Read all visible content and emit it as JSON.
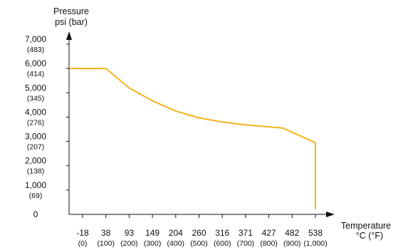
{
  "chart_data": {
    "type": "line",
    "ylabel": [
      "Pressure",
      "psi (bar)"
    ],
    "xlabel": [
      "Temperature",
      "°C (°F)"
    ],
    "ylim": [
      0,
      7000
    ],
    "y_ticks": [
      {
        "value": 7000,
        "main": "7,000",
        "sub": "(483)"
      },
      {
        "value": 6000,
        "main": "6,000",
        "sub": "(414)"
      },
      {
        "value": 5000,
        "main": "5,000",
        "sub": "(345)"
      },
      {
        "value": 4000,
        "main": "4,000",
        "sub": "(276)"
      },
      {
        "value": 3000,
        "main": "3,000",
        "sub": "(207)"
      },
      {
        "value": 2000,
        "main": "2,000",
        "sub": "(138)"
      },
      {
        "value": 1000,
        "main": "1,000",
        "sub": "(69)"
      },
      {
        "value": 0,
        "main": "0",
        "sub": ""
      }
    ],
    "x_ticks": [
      {
        "main": "-18",
        "sub": "(0)"
      },
      {
        "main": "38",
        "sub": "(100)"
      },
      {
        "main": "93",
        "sub": "(200)"
      },
      {
        "main": "149",
        "sub": "(300)"
      },
      {
        "main": "204",
        "sub": "(400)"
      },
      {
        "main": "260",
        "sub": "(500)"
      },
      {
        "main": "316",
        "sub": "(600)"
      },
      {
        "main": "371",
        "sub": "(700)"
      },
      {
        "main": "427",
        "sub": "(800)"
      },
      {
        "main": "482",
        "sub": "(900)"
      },
      {
        "main": "538",
        "sub": "(1,000)"
      }
    ],
    "series": [
      {
        "color": "#F4B41A",
        "points": [
          {
            "x_f": -60,
            "y": 6000
          },
          {
            "x_f": 100,
            "y": 6000
          },
          {
            "x_f": 200,
            "y": 5200
          },
          {
            "x_f": 300,
            "y": 4670
          },
          {
            "x_f": 400,
            "y": 4250
          },
          {
            "x_f": 500,
            "y": 3970
          },
          {
            "x_f": 600,
            "y": 3800
          },
          {
            "x_f": 700,
            "y": 3680
          },
          {
            "x_f": 800,
            "y": 3600
          },
          {
            "x_f": 860,
            "y": 3550
          },
          {
            "x_f": 1000,
            "y": 2950
          },
          {
            "x_f": 1000,
            "y": 220
          }
        ]
      }
    ]
  }
}
